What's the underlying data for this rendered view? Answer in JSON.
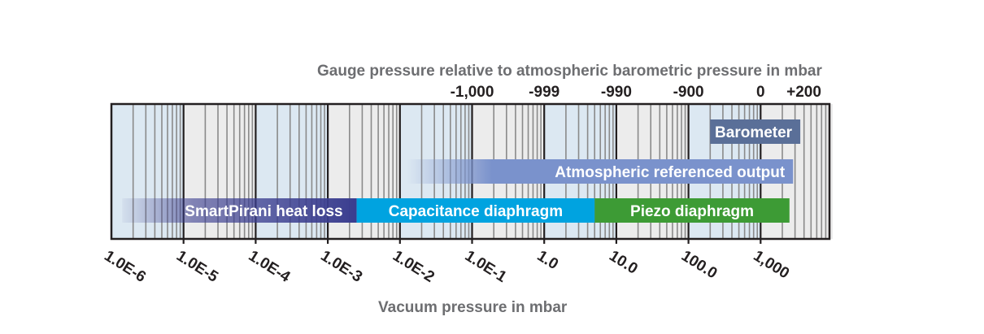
{
  "top_title": "Gauge pressure relative to atmospheric barometric pressure in mbar",
  "bottom_title": "Vacuum pressure in mbar",
  "gauge_labels": [
    {
      "text": "-1,000",
      "decade": 5
    },
    {
      "text": "-999",
      "decade": 6
    },
    {
      "text": "-990",
      "decade": 7
    },
    {
      "text": "-900",
      "decade": 8
    },
    {
      "text": "0",
      "decade": 9
    },
    {
      "text": "+200",
      "decade": 9.6
    }
  ],
  "ticks": [
    "1.0E-6",
    "1.0E-5",
    "1.0E-4",
    "1.0E-3",
    "1.0E-2",
    "1.0E-1",
    "1.0",
    "10.0",
    "100.0",
    "1,000"
  ],
  "bars": [
    {
      "label": "Barometer",
      "start_decade": 8.3,
      "end_decade": 9.55,
      "row": 0,
      "color": "#5a6f98"
    },
    {
      "label": "Atmospheric referenced output",
      "start_decade": 4.1,
      "end_decade": 9.45,
      "row": 1,
      "color": "#7a92cc"
    },
    {
      "label": "SmartPirani heat loss",
      "start_decade": 0.15,
      "end_decade": 3.4,
      "row": 2,
      "color": "#3a3d8f"
    },
    {
      "label": "Capacitance diaphragm",
      "start_decade": 3.4,
      "end_decade": 6.7,
      "row": 2,
      "color": "#00a3e0"
    },
    {
      "label": "Piezo diaphragm",
      "start_decade": 6.7,
      "end_decade": 9.4,
      "row": 2,
      "color": "#3d9b35"
    }
  ],
  "colors": {
    "frame": "#231f20",
    "band_blue": "#dce8f2",
    "band_grey": "#ececec",
    "minor_line": "#8a8a8a"
  }
}
